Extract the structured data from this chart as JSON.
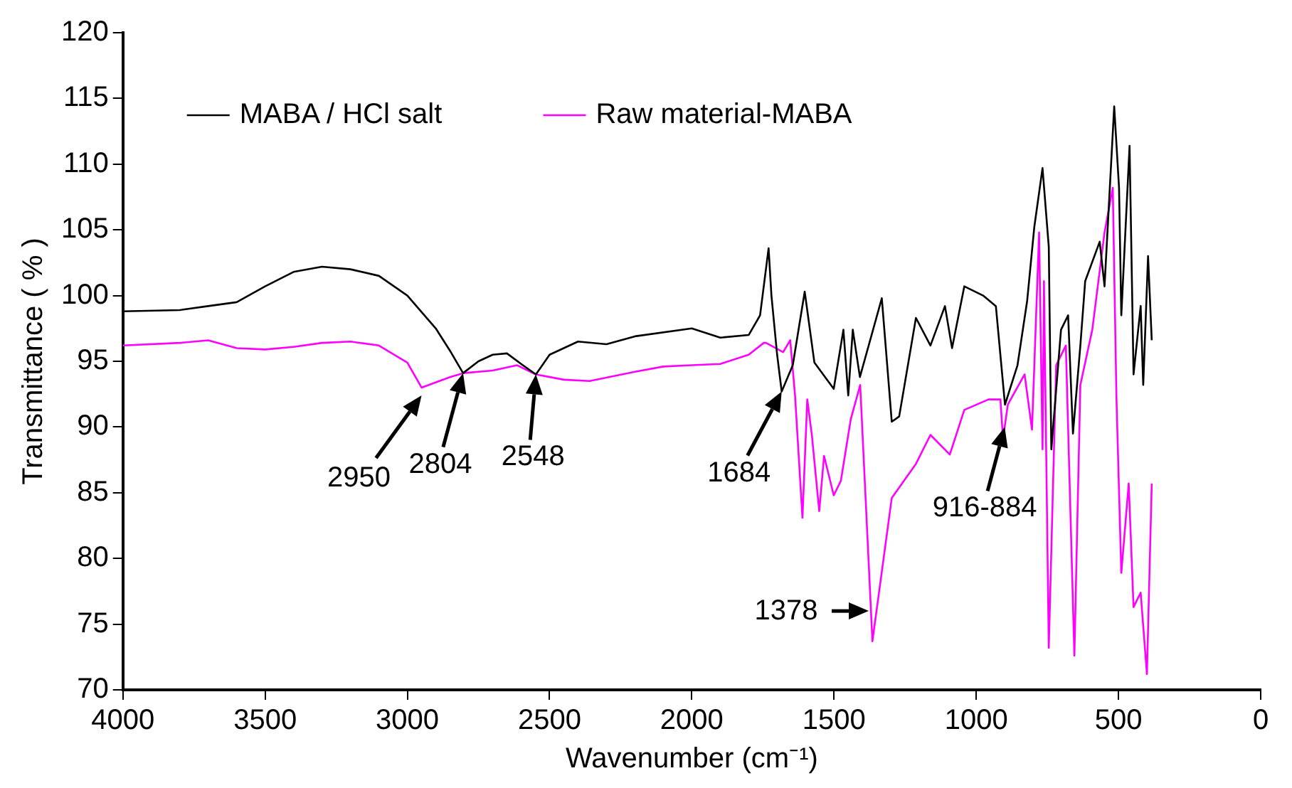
{
  "chart_data": {
    "type": "line",
    "xlabel": "Wavenumber (cm⁻¹)",
    "ylabel": "Transmittance ( % )",
    "xlim": [
      4000,
      0
    ],
    "xticks": [
      4000,
      3500,
      3000,
      2500,
      2000,
      1500,
      1000,
      500,
      0
    ],
    "ylim": [
      70,
      120
    ],
    "yticks": [
      70,
      75,
      80,
      85,
      90,
      95,
      100,
      105,
      110,
      115,
      120
    ],
    "grid": false,
    "legend": "top left",
    "marker": "none",
    "line_style": "solid",
    "series": [
      {
        "name": "MABA / HCl salt",
        "color": "#000000",
        "x": [
          4000,
          3800,
          3700,
          3600,
          3500,
          3400,
          3300,
          3200,
          3100,
          3000,
          2900,
          2850,
          2804,
          2750,
          2700,
          2650,
          2600,
          2548,
          2500,
          2400,
          2300,
          2200,
          2000,
          1900,
          1800,
          1760,
          1730,
          1720,
          1700,
          1684,
          1645,
          1603,
          1569,
          1501,
          1467,
          1450,
          1434,
          1409,
          1332,
          1297,
          1271,
          1212,
          1161,
          1110,
          1085,
          1042,
          976,
          931,
          899,
          855,
          821,
          796,
          767,
          745,
          736,
          702,
          677,
          660,
          634,
          617,
          566,
          549,
          515,
          498,
          490,
          461,
          447,
          422,
          413,
          396,
          383
        ],
        "values": [
          98.8,
          98.9,
          99.2,
          99.5,
          100.7,
          101.8,
          102.2,
          102,
          101.5,
          100,
          97.5,
          95.8,
          94.1,
          95,
          95.5,
          95.6,
          94.8,
          94,
          95.5,
          96.5,
          96.3,
          96.9,
          97.5,
          96.8,
          97,
          98.5,
          103.6,
          100,
          95.5,
          92.7,
          94.7,
          100.3,
          94.9,
          92.9,
          97.4,
          92.4,
          97.4,
          93.8,
          99.8,
          90.4,
          90.8,
          98.3,
          96.2,
          99.2,
          96,
          100.7,
          100,
          99.2,
          91.7,
          94.7,
          99.6,
          105.2,
          109.7,
          103.7,
          88.3,
          97.4,
          98.5,
          89.5,
          96.2,
          101.1,
          104.1,
          100.7,
          114.4,
          108.2,
          98.5,
          111.4,
          94,
          99.2,
          93.2,
          103,
          96.6
        ]
      },
      {
        "name": "Raw material-MABA",
        "color": "#ff00ff",
        "x": [
          4000,
          3800,
          3700,
          3600,
          3500,
          3400,
          3300,
          3200,
          3100,
          3000,
          2950,
          2850,
          2804,
          2700,
          2614,
          2548,
          2450,
          2359,
          2200,
          2100,
          2000,
          1900,
          1800,
          1747,
          1739,
          1679,
          1654,
          1637,
          1611,
          1594,
          1578,
          1552,
          1535,
          1501,
          1476,
          1441,
          1408,
          1365,
          1297,
          1212,
          1161,
          1093,
          1042,
          957,
          915,
          906,
          889,
          830,
          804,
          779,
          767,
          762,
          745,
          719,
          685,
          655,
          634,
          592,
          549,
          520,
          507,
          490,
          464,
          447,
          422,
          400,
          383
        ],
        "values": [
          96.2,
          96.4,
          96.6,
          96,
          95.9,
          96.1,
          96.4,
          96.5,
          96.2,
          94.9,
          93,
          93.8,
          94.1,
          94.3,
          94.7,
          94,
          93.6,
          93.5,
          94.2,
          94.6,
          94.7,
          94.8,
          95.5,
          96.4,
          96.4,
          95.7,
          96.6,
          92.4,
          83.1,
          92.1,
          89.4,
          83.6,
          87.8,
          84.8,
          85.9,
          90.6,
          93.2,
          73.7,
          84.6,
          87.2,
          89.4,
          87.9,
          91.3,
          92.1,
          92.1,
          89.1,
          91.7,
          94,
          89.8,
          104.8,
          88.3,
          101.1,
          73.2,
          94.7,
          96.2,
          72.6,
          93.2,
          97.4,
          104.8,
          108.2,
          92.1,
          78.9,
          85.7,
          76.3,
          77.4,
          71.2,
          85.7
        ]
      }
    ],
    "annotations": [
      {
        "text": "2950",
        "x": 2950,
        "y": 92.4
      },
      {
        "text": "2804",
        "x": 2804,
        "y": 94.1
      },
      {
        "text": "2548",
        "x": 2548,
        "y": 94
      },
      {
        "text": "1684",
        "x": 1684,
        "y": 92.7
      },
      {
        "text": "1378",
        "x": 1378,
        "y": 76
      },
      {
        "text": "916-884",
        "x": 900,
        "y": 90
      }
    ]
  }
}
